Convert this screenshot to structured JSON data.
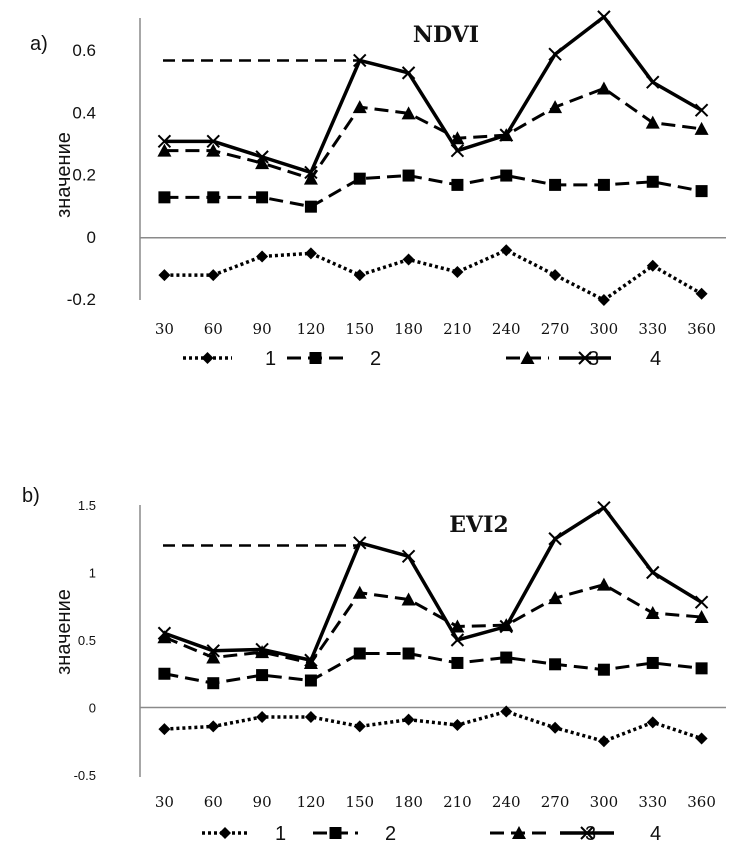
{
  "chart_data": [
    {
      "panel": "a)",
      "type": "line",
      "title": "NDVI",
      "xlabel": "",
      "ylabel": "значение",
      "x": [
        30,
        60,
        90,
        120,
        150,
        180,
        210,
        240,
        270,
        300,
        330,
        360
      ],
      "ylim": [
        -0.2,
        0.7
      ],
      "yticks": [
        "-0.2",
        "0",
        "0.2",
        "0.4",
        "0.6"
      ],
      "threshold": 0.57,
      "series": [
        {
          "name": "1",
          "style": "dotted",
          "marker": "diamond",
          "values": [
            -0.12,
            -0.12,
            -0.06,
            -0.05,
            -0.12,
            -0.07,
            -0.11,
            -0.04,
            -0.12,
            -0.2,
            -0.09,
            -0.18
          ]
        },
        {
          "name": "2",
          "style": "dashed",
          "marker": "square",
          "values": [
            0.13,
            0.13,
            0.13,
            0.1,
            0.19,
            0.2,
            0.17,
            0.2,
            0.17,
            0.17,
            0.18,
            0.15
          ]
        },
        {
          "name": "3",
          "style": "dashed",
          "marker": "triangle",
          "values": [
            0.28,
            0.28,
            0.24,
            0.19,
            0.42,
            0.4,
            0.32,
            0.33,
            0.42,
            0.48,
            0.37,
            0.35
          ]
        },
        {
          "name": "4",
          "style": "solid",
          "marker": "x",
          "values": [
            0.31,
            0.31,
            0.26,
            0.21,
            0.57,
            0.53,
            0.28,
            0.33,
            0.59,
            0.71,
            0.5,
            0.41
          ]
        }
      ]
    },
    {
      "panel": "b)",
      "type": "line",
      "title": "EVI2",
      "xlabel": "",
      "ylabel": "значение",
      "x": [
        30,
        60,
        90,
        120,
        150,
        180,
        210,
        240,
        270,
        300,
        330,
        360
      ],
      "ylim": [
        -0.5,
        1.5
      ],
      "yticks": [
        "-0.5",
        "0",
        "0.5",
        "1",
        "1.5"
      ],
      "threshold": 1.2,
      "series": [
        {
          "name": "1",
          "style": "dotted",
          "marker": "diamond",
          "values": [
            -0.16,
            -0.14,
            -0.07,
            -0.07,
            -0.14,
            -0.09,
            -0.13,
            -0.03,
            -0.15,
            -0.25,
            -0.11,
            -0.23
          ]
        },
        {
          "name": "2",
          "style": "dashed",
          "marker": "square",
          "values": [
            0.25,
            0.18,
            0.24,
            0.2,
            0.4,
            0.4,
            0.33,
            0.37,
            0.32,
            0.28,
            0.33,
            0.29
          ]
        },
        {
          "name": "3",
          "style": "dashed",
          "marker": "triangle",
          "values": [
            0.52,
            0.37,
            0.41,
            0.33,
            0.85,
            0.8,
            0.6,
            0.61,
            0.81,
            0.91,
            0.7,
            0.67
          ]
        },
        {
          "name": "4",
          "style": "solid",
          "marker": "x",
          "values": [
            0.55,
            0.42,
            0.43,
            0.35,
            1.22,
            1.12,
            0.5,
            0.6,
            1.25,
            1.48,
            1.0,
            0.78
          ]
        }
      ]
    }
  ]
}
